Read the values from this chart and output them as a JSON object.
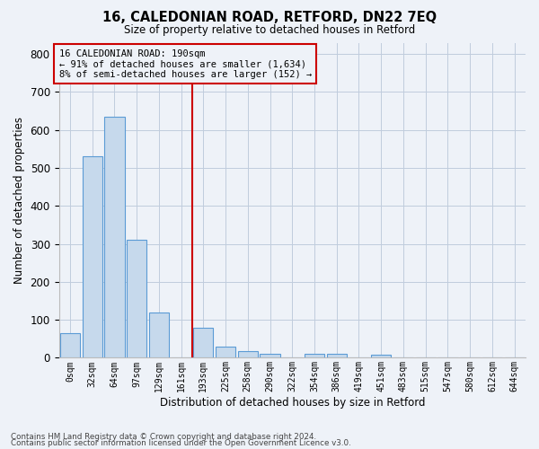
{
  "title_line1": "16, CALEDONIAN ROAD, RETFORD, DN22 7EQ",
  "title_line2": "Size of property relative to detached houses in Retford",
  "xlabel": "Distribution of detached houses by size in Retford",
  "ylabel": "Number of detached properties",
  "categories": [
    "0sqm",
    "32sqm",
    "64sqm",
    "97sqm",
    "129sqm",
    "161sqm",
    "193sqm",
    "225sqm",
    "258sqm",
    "290sqm",
    "322sqm",
    "354sqm",
    "386sqm",
    "419sqm",
    "451sqm",
    "483sqm",
    "515sqm",
    "547sqm",
    "580sqm",
    "612sqm",
    "644sqm"
  ],
  "bar_values": [
    65,
    530,
    635,
    310,
    120,
    0,
    78,
    30,
    17,
    11,
    0,
    10,
    10,
    0,
    8,
    0,
    0,
    0,
    0,
    0,
    0
  ],
  "bar_color": "#c6d9ec",
  "bar_edge_color": "#5b9bd5",
  "vline_index": 6,
  "annotation_title": "16 CALEDONIAN ROAD: 190sqm",
  "annotation_line1": "← 91% of detached houses are smaller (1,634)",
  "annotation_line2": "8% of semi-detached houses are larger (152) →",
  "vline_color": "#cc0000",
  "annotation_box_edge_color": "#cc0000",
  "ylim": [
    0,
    830
  ],
  "yticks": [
    0,
    100,
    200,
    300,
    400,
    500,
    600,
    700,
    800
  ],
  "grid_color": "#c0ccdd",
  "background_color": "#eef2f8",
  "footer_line1": "Contains HM Land Registry data © Crown copyright and database right 2024.",
  "footer_line2": "Contains public sector information licensed under the Open Government Licence v3.0."
}
